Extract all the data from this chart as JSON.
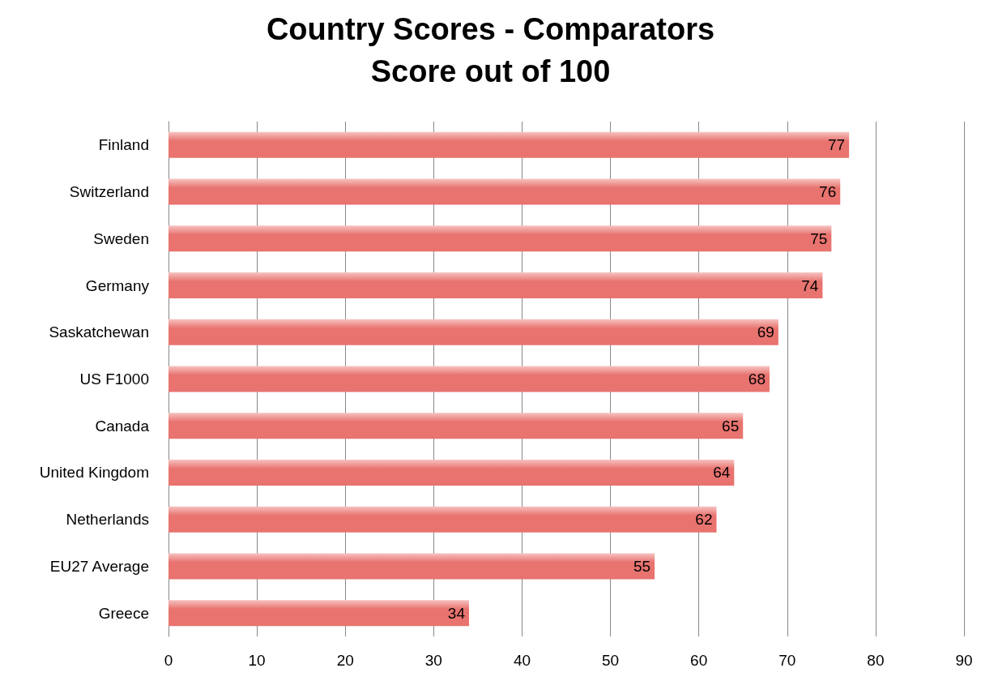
{
  "chart_data": {
    "type": "bar",
    "orientation": "horizontal",
    "title": "Country Scores - Comparators",
    "subtitle": "Score out of 100",
    "categories": [
      "Finland",
      "Switzerland",
      "Sweden",
      "Germany",
      "Saskatchewan",
      "US F1000",
      "Canada",
      "United Kingdom",
      "Netherlands",
      "EU27 Average",
      "Greece"
    ],
    "values": [
      77,
      76,
      75,
      74,
      69,
      68,
      65,
      64,
      62,
      55,
      34
    ],
    "color": "#e8736f",
    "xlim": [
      0,
      90
    ],
    "xticks": [
      0,
      10,
      20,
      30,
      40,
      50,
      60,
      70,
      80,
      90
    ],
    "grid": "x",
    "data_labels": true
  }
}
